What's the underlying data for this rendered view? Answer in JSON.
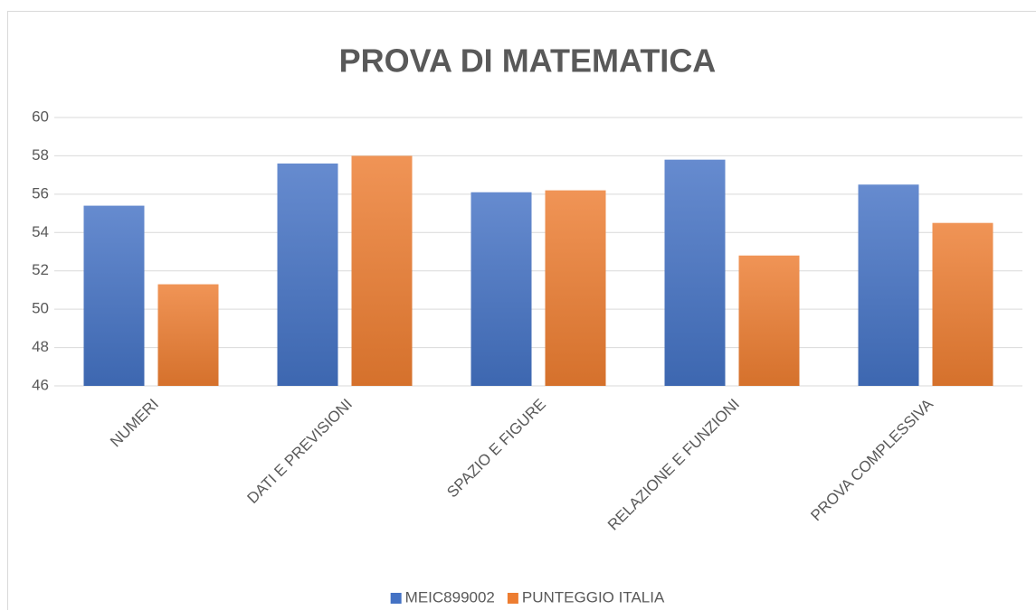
{
  "chart_data": {
    "type": "bar",
    "title": "PROVA DI MATEMATICA",
    "categories": [
      "NUMERI",
      "DATI E PREVISIONI",
      "SPAZIO E FIGURE",
      "RELAZIONE E FUNZIONI",
      "PROVA COMPLESSIVA"
    ],
    "series": [
      {
        "name": "MEIC899002",
        "color": "#4472c4",
        "values": [
          55.4,
          57.6,
          56.1,
          57.8,
          56.5
        ]
      },
      {
        "name": "PUNTEGGIO ITALIA",
        "color": "#ed7d31",
        "values": [
          51.3,
          58.0,
          56.2,
          52.8,
          54.5
        ]
      }
    ],
    "ylim": [
      46,
      60
    ],
    "yticks": [
      46,
      48,
      50,
      52,
      54,
      56,
      58,
      60
    ],
    "grid": true,
    "legend": "bottom"
  }
}
